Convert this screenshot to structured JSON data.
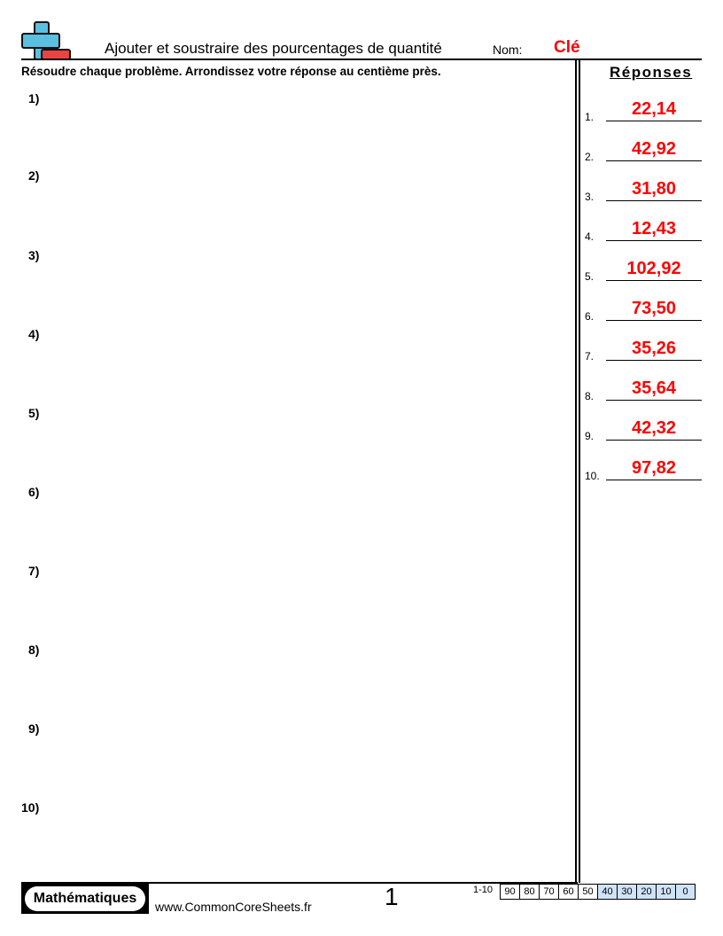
{
  "header": {
    "title": "Ajouter et soustraire des pourcentages de quantité",
    "name_label": "Nom:",
    "name_value": "Clé"
  },
  "instructions": "Résoudre chaque problème. Arrondissez votre réponse au centième près.",
  "problems": [
    "1)",
    "2)",
    "3)",
    "4)",
    "5)",
    "6)",
    "7)",
    "8)",
    "9)",
    "10)"
  ],
  "answers": {
    "title": "Réponses",
    "items": [
      {
        "num": "1.",
        "value": "22,14"
      },
      {
        "num": "2.",
        "value": "42,92"
      },
      {
        "num": "3.",
        "value": "31,80"
      },
      {
        "num": "4.",
        "value": "12,43"
      },
      {
        "num": "5.",
        "value": "102,92"
      },
      {
        "num": "6.",
        "value": "73,50"
      },
      {
        "num": "7.",
        "value": "35,26"
      },
      {
        "num": "8.",
        "value": "35,64"
      },
      {
        "num": "9.",
        "value": "42,32"
      },
      {
        "num": "10.",
        "value": "97,82"
      }
    ]
  },
  "footer": {
    "subject": "Mathématiques",
    "site": "www.CommonCoreSheets.fr",
    "page": "1",
    "score_range": "1-10",
    "scores": [
      "90",
      "80",
      "70",
      "60",
      "50",
      "40",
      "30",
      "20",
      "10",
      "0"
    ]
  },
  "colors": {
    "answer": "#ff0000",
    "score_highlight": "#cfe2f8"
  }
}
